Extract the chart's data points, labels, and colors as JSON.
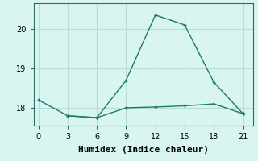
{
  "xlabel": "Humidex (Indice chaleur)",
  "background_color": "#d8f5f0",
  "line_color": "#1a7a6e",
  "grid_color": "#b8ddd8",
  "series1_x": [
    0,
    3,
    6,
    9,
    12,
    15,
    18,
    21
  ],
  "series1_y": [
    18.2,
    17.8,
    17.75,
    18.7,
    20.35,
    20.1,
    18.65,
    17.85
  ],
  "series2_x": [
    3,
    6,
    9,
    12,
    15,
    18,
    21
  ],
  "series2_y": [
    17.8,
    17.75,
    18.0,
    18.02,
    18.05,
    18.1,
    17.85
  ],
  "xlim": [
    -0.5,
    22.0
  ],
  "ylim": [
    17.55,
    20.65
  ],
  "xticks": [
    0,
    3,
    6,
    9,
    12,
    15,
    18,
    21
  ],
  "yticks": [
    18,
    19,
    20
  ],
  "markersize": 3,
  "linewidth": 1.0,
  "tick_labelsize": 7,
  "xlabel_fontsize": 8
}
